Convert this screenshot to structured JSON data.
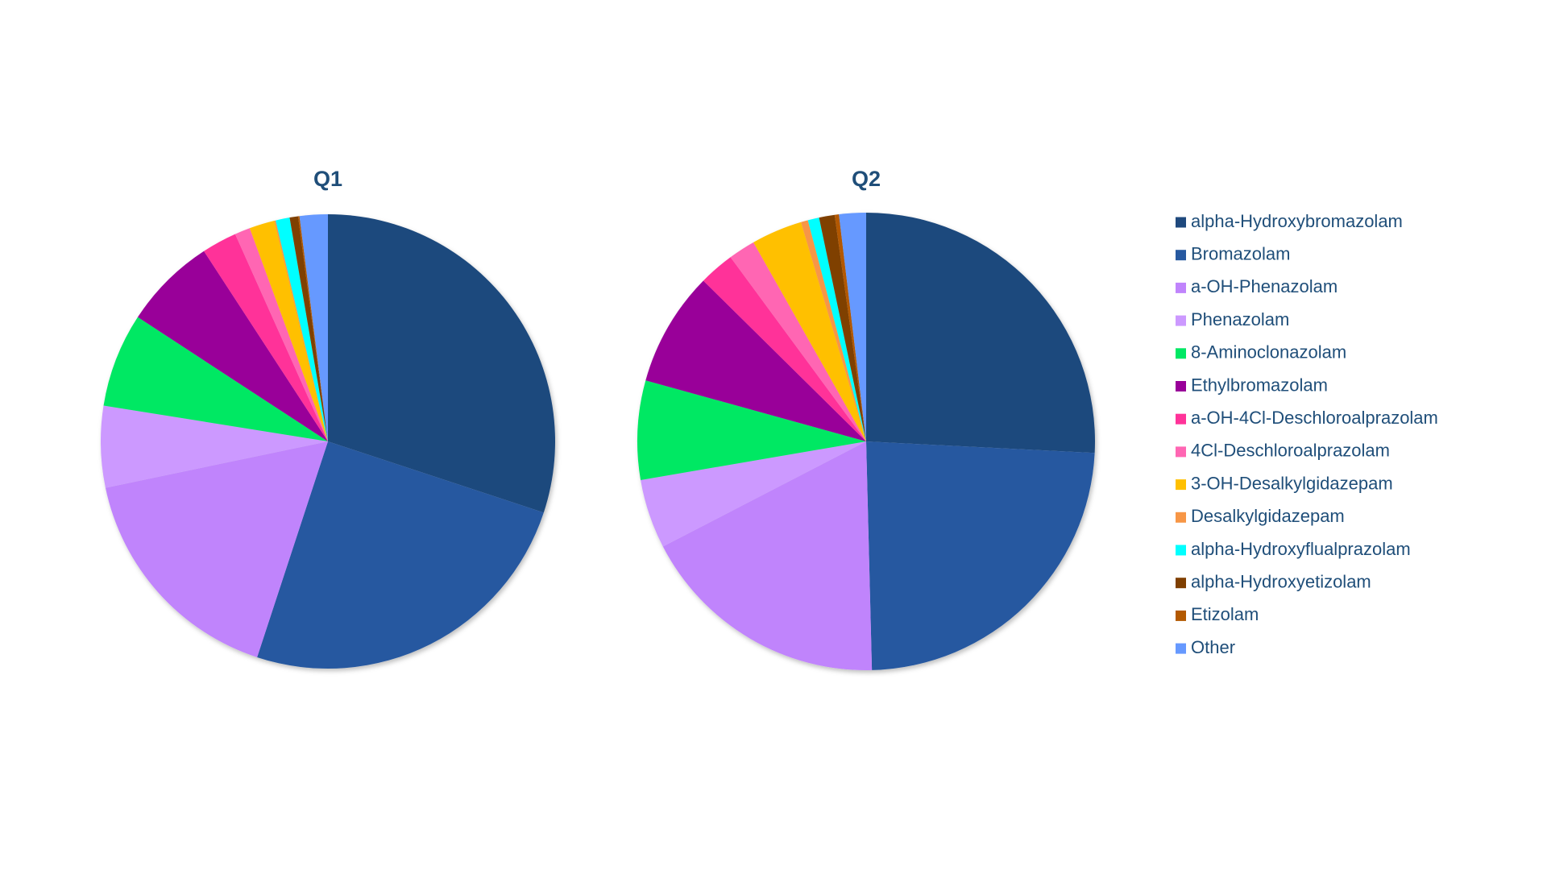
{
  "chart_data": [
    {
      "type": "pie",
      "title": "Q1",
      "values": [
        30.1,
        25.0,
        16.7,
        5.8,
        6.7,
        6.6,
        2.5,
        1.1,
        1.8,
        0.1,
        1.0,
        0.6,
        0.1,
        2.0
      ]
    },
    {
      "type": "pie",
      "title": "Q2",
      "values": [
        25.8,
        23.8,
        17.8,
        4.9,
        7.0,
        8.1,
        2.5,
        1.9,
        3.6,
        0.5,
        0.8,
        1.1,
        0.3,
        1.9
      ]
    }
  ],
  "legend": {
    "labels": [
      "alpha-Hydroxybromazolam",
      "Bromazolam",
      "a-OH-Phenazolam",
      "Phenazolam",
      "8-Aminoclonazolam",
      "Ethylbromazolam",
      "a-OH-4Cl-Deschloroalprazolam",
      "4Cl-Deschloroalprazolam",
      "3-OH-Desalkylgidazepam",
      "Desalkylgidazepam",
      "alpha-Hydroxyflualprazolam",
      "alpha-Hydroxyetizolam",
      "Etizolam",
      "Other"
    ],
    "colors": [
      "#1f497d",
      "#2759a0",
      "#c084fc",
      "#cc99ff",
      "#00e864",
      "#990099",
      "#ff3399",
      "#ff66b3",
      "#ffc000",
      "#f79646",
      "#00ffff",
      "#7f3f00",
      "#b35900",
      "#6699ff"
    ]
  }
}
